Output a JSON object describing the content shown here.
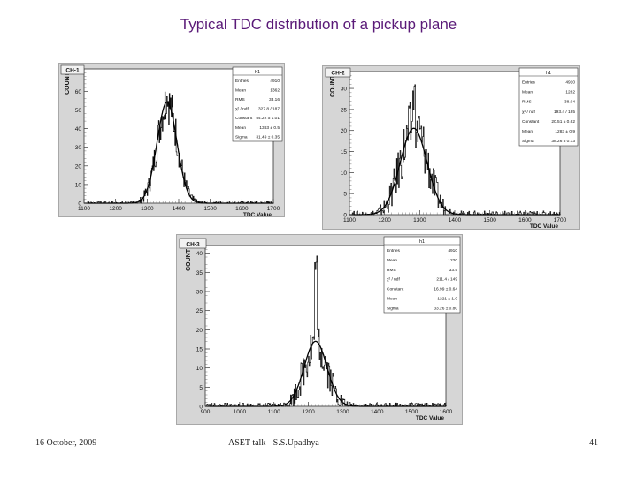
{
  "slide": {
    "title": "Typical TDC distribution of a pickup plane",
    "footer_left": "16 October, 2009",
    "footer_center": "ASET talk -  S.S.Upadhya",
    "page_number": "41"
  },
  "colors": {
    "title": "#5a1a78",
    "panel_bg": "#d6d6d6",
    "plot_bg": "#ffffff",
    "histogram": "#111111",
    "fit": "#000000"
  },
  "chart_data": [
    {
      "type": "bar",
      "label": "CH-1",
      "hist_name": "h1",
      "xlabel": "TDC Value",
      "ylabel": "COUNT",
      "xlim": [
        1100,
        1700
      ],
      "ylim": [
        0,
        72
      ],
      "x_ticks": [
        "1100",
        "1200",
        "1300",
        "1400",
        "1500",
        "1600",
        "1700"
      ],
      "y_ticks": [
        "0",
        "10",
        "20",
        "30",
        "40",
        "50",
        "60"
      ],
      "stats": [
        {
          "name": "Entries",
          "value": "4910"
        },
        {
          "name": "Mean",
          "value": "1362"
        },
        {
          "name": "RMS",
          "value": "33.16"
        },
        {
          "name": "χ² / ndf",
          "value": "327.8 / 187"
        },
        {
          "name": "Constant",
          "value": "54.22 ± 1.01"
        },
        {
          "name": "Mean",
          "value": "1363 ± 0.5"
        },
        {
          "name": "Sigma",
          "value": "31.49 ± 0.35"
        }
      ],
      "fit": {
        "function": "gaus",
        "constant": 54.22,
        "mean": 1363,
        "sigma": 31.49
      },
      "peak": 64
    },
    {
      "type": "bar",
      "label": "CH-2",
      "hist_name": "h1",
      "xlabel": "TDC Value",
      "ylabel": "COUNT",
      "xlim": [
        1100,
        1700
      ],
      "ylim": [
        0,
        34
      ],
      "x_ticks": [
        "1100",
        "1200",
        "1300",
        "1400",
        "1500",
        "1600",
        "1700"
      ],
      "y_ticks": [
        "0",
        "5",
        "10",
        "15",
        "20",
        "25",
        "30"
      ],
      "stats": [
        {
          "name": "Entries",
          "value": "4910"
        },
        {
          "name": "Mean",
          "value": "1282"
        },
        {
          "name": "RMS",
          "value": "38.04"
        },
        {
          "name": "χ² / ndf",
          "value": "193.4 / 185"
        },
        {
          "name": "Constant",
          "value": "20.51 ± 0.62"
        },
        {
          "name": "Mean",
          "value": "1283 ± 0.9"
        },
        {
          "name": "Sigma",
          "value": "38.26 ± 0.73"
        }
      ],
      "fit": {
        "function": "gaus",
        "constant": 20.51,
        "mean": 1283,
        "sigma": 38.26
      },
      "peak": 32
    },
    {
      "type": "bar",
      "label": "CH-3",
      "hist_name": "h1",
      "xlabel": "TDC Value",
      "ylabel": "COUNT",
      "xlim": [
        900,
        1600
      ],
      "ylim": [
        0,
        42
      ],
      "x_ticks": [
        "900",
        "1000",
        "1100",
        "1200",
        "1300",
        "1400",
        "1500",
        "1600"
      ],
      "y_ticks": [
        "0",
        "5",
        "10",
        "15",
        "20",
        "25",
        "30",
        "35",
        "40"
      ],
      "stats": [
        {
          "name": "Entries",
          "value": "4910"
        },
        {
          "name": "Mean",
          "value": "1220"
        },
        {
          "name": "RMS",
          "value": "33.5"
        },
        {
          "name": "χ² / ndf",
          "value": "211.4 / 149"
        },
        {
          "name": "Constant",
          "value": "16.99 ± 0.64"
        },
        {
          "name": "Mean",
          "value": "1221 ± 1.0"
        },
        {
          "name": "Sigma",
          "value": "33.26 ± 0.80"
        }
      ],
      "fit": {
        "function": "gaus",
        "constant": 16.99,
        "mean": 1221,
        "sigma": 33.26
      },
      "peak": 40
    }
  ]
}
